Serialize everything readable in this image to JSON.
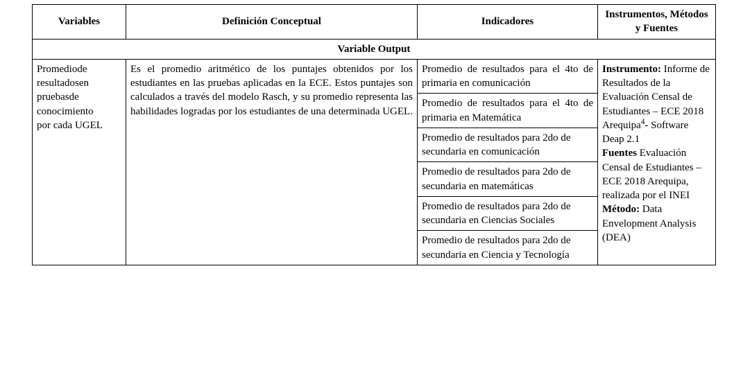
{
  "headers": {
    "variables": "Variables",
    "definicion": "Definición Conceptual",
    "indicadores": "Indicadores",
    "instrumentos": "Instrumentos, Métodos y Fuentes"
  },
  "section_title": "Variable Output",
  "row": {
    "variable_l1": "Promedio",
    "variable_l2": "de",
    "variable_l3": "resultados",
    "variable_l4": "en",
    "variable_l5": "pruebas",
    "variable_l6": "de",
    "variable_l7": "conocimiento",
    "variable_l8": "por cada UGEL",
    "definicion": "Es el promedio aritmético de los puntajes obtenidos por los estudiantes en las pruebas aplicadas en la ECE. Estos puntajes son calculados a través del modelo Rasch, y su promedio representa las habilidades logradas por los estudiantes de una determinada UGEL.",
    "indicadores": [
      "Promedio de resultados para el 4to de primaria en comunicación",
      "Promedio de resultados para el 4to de primaria en Matemática",
      "Promedio de resultados para 2do de secundaria en comunicación",
      "Promedio de resultados para 2do de secundaria en matemáticas",
      "Promedio de resultados para 2do de secundaria en Ciencias Sociales",
      "Promedio de resultados para 2do de secundaria en Ciencia y Tecnología"
    ],
    "instr": {
      "instr_label": "Instrumento:",
      "instr_text_a": " Informe de Resultados de la Evaluación Censal de Estudiantes – ECE 2018 Arequipa",
      "instr_sup": "4",
      "instr_text_b": "- Software Deap 2.1",
      "fuentes_label": "Fuentes",
      "fuentes_text": " Evaluación Censal de Estudiantes – ECE 2018 Arequipa, realizada por el INEI",
      "metodo_label": "Método:",
      "metodo_text": " Data Envelopment Analysis (DEA)"
    }
  },
  "style": {
    "font_family": "Times New Roman",
    "font_size_pt": 11,
    "border_color": "#000000",
    "background_color": "#ffffff",
    "text_color": "#000000"
  }
}
